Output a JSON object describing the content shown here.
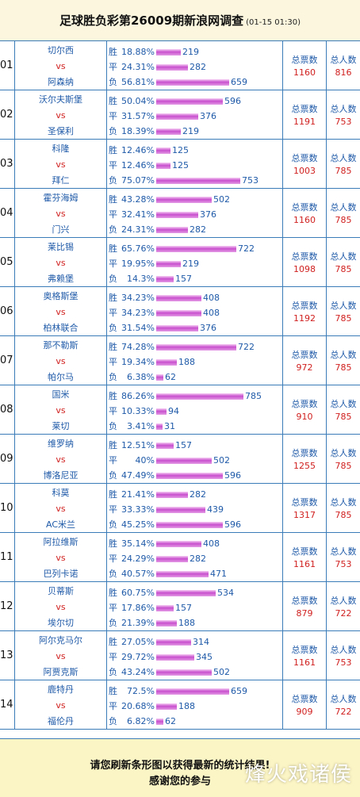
{
  "header": {
    "title": "足球胜负彩第26009期新浪网调查",
    "time": "(01-15 01:30)"
  },
  "labels": {
    "win": "胜",
    "draw": "平",
    "lose": "负",
    "vs": "vs",
    "votes": "总票数",
    "people": "总人数"
  },
  "matches": [
    {
      "no": "01",
      "home": "切尔西",
      "away": "阿森纳",
      "odds": [
        {
          "pct": "18.88%",
          "count": 219
        },
        {
          "pct": "24.31%",
          "count": 282
        },
        {
          "pct": "56.81%",
          "count": 659
        }
      ],
      "votes": "1160",
      "people": "816"
    },
    {
      "no": "02",
      "home": "沃尔夫斯堡",
      "away": "圣保利",
      "odds": [
        {
          "pct": "50.04%",
          "count": 596
        },
        {
          "pct": "31.57%",
          "count": 376
        },
        {
          "pct": "18.39%",
          "count": 219
        }
      ],
      "votes": "1191",
      "people": "753"
    },
    {
      "no": "03",
      "home": "科隆",
      "away": "拜仁",
      "odds": [
        {
          "pct": "12.46%",
          "count": 125
        },
        {
          "pct": "12.46%",
          "count": 125
        },
        {
          "pct": "75.07%",
          "count": 753
        }
      ],
      "votes": "1003",
      "people": "785"
    },
    {
      "no": "04",
      "home": "霍芬海姆",
      "away": "门兴",
      "odds": [
        {
          "pct": "43.28%",
          "count": 502
        },
        {
          "pct": "32.41%",
          "count": 376
        },
        {
          "pct": "24.31%",
          "count": 282
        }
      ],
      "votes": "1160",
      "people": "785"
    },
    {
      "no": "05",
      "home": "莱比锡",
      "away": "弗赖堡",
      "odds": [
        {
          "pct": "65.76%",
          "count": 722
        },
        {
          "pct": "19.95%",
          "count": 219
        },
        {
          "pct": "14.3%",
          "count": 157
        }
      ],
      "votes": "1098",
      "people": "785"
    },
    {
      "no": "06",
      "home": "奥格斯堡",
      "away": "柏林联合",
      "odds": [
        {
          "pct": "34.23%",
          "count": 408
        },
        {
          "pct": "34.23%",
          "count": 408
        },
        {
          "pct": "31.54%",
          "count": 376
        }
      ],
      "votes": "1192",
      "people": "785"
    },
    {
      "no": "07",
      "home": "那不勒斯",
      "away": "帕尔马",
      "odds": [
        {
          "pct": "74.28%",
          "count": 722
        },
        {
          "pct": "19.34%",
          "count": 188
        },
        {
          "pct": "6.38%",
          "count": 62
        }
      ],
      "votes": "972",
      "people": "785"
    },
    {
      "no": "08",
      "home": "国米",
      "away": "莱切",
      "odds": [
        {
          "pct": "86.26%",
          "count": 785
        },
        {
          "pct": "10.33%",
          "count": 94
        },
        {
          "pct": "3.41%",
          "count": 31
        }
      ],
      "votes": "910",
      "people": "785"
    },
    {
      "no": "09",
      "home": "维罗纳",
      "away": "博洛尼亚",
      "odds": [
        {
          "pct": "12.51%",
          "count": 157
        },
        {
          "pct": "40%",
          "count": 502
        },
        {
          "pct": "47.49%",
          "count": 596
        }
      ],
      "votes": "1255",
      "people": "785"
    },
    {
      "no": "10",
      "home": "科莫",
      "away": "AC米兰",
      "odds": [
        {
          "pct": "21.41%",
          "count": 282
        },
        {
          "pct": "33.33%",
          "count": 439
        },
        {
          "pct": "45.25%",
          "count": 596
        }
      ],
      "votes": "1317",
      "people": "785"
    },
    {
      "no": "11",
      "home": "阿拉维斯",
      "away": "巴列卡诺",
      "odds": [
        {
          "pct": "35.14%",
          "count": 408
        },
        {
          "pct": "24.29%",
          "count": 282
        },
        {
          "pct": "40.57%",
          "count": 471
        }
      ],
      "votes": "1161",
      "people": "753"
    },
    {
      "no": "12",
      "home": "贝蒂斯",
      "away": "埃尔切",
      "odds": [
        {
          "pct": "60.75%",
          "count": 534
        },
        {
          "pct": "17.86%",
          "count": 157
        },
        {
          "pct": "21.39%",
          "count": 188
        }
      ],
      "votes": "879",
      "people": "722"
    },
    {
      "no": "13",
      "home": "阿尔克马尔",
      "away": "阿贾克斯",
      "odds": [
        {
          "pct": "27.05%",
          "count": 314
        },
        {
          "pct": "29.72%",
          "count": 345
        },
        {
          "pct": "43.24%",
          "count": 502
        }
      ],
      "votes": "1161",
      "people": "753"
    },
    {
      "no": "14",
      "home": "鹿特丹",
      "away": "福伦丹",
      "odds": [
        {
          "pct": "72.5%",
          "count": 659
        },
        {
          "pct": "20.68%",
          "count": 188
        },
        {
          "pct": "6.82%",
          "count": 62
        }
      ],
      "votes": "909",
      "people": "722"
    }
  ],
  "footer": {
    "line1": "请您刷新条形图以获得最新的统计结果!",
    "line2": "感谢您的参与",
    "watermark": "烽火戏诸侯"
  }
}
